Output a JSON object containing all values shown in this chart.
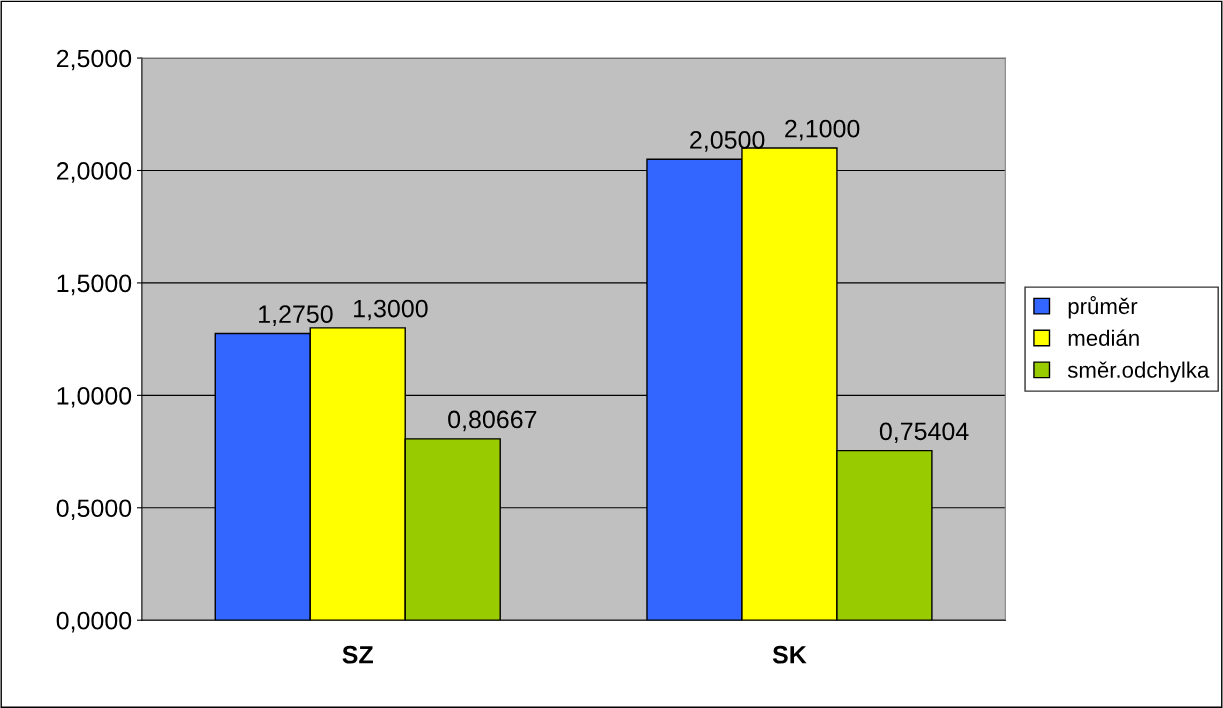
{
  "chart_data": {
    "type": "bar",
    "categories": [
      "SZ",
      "SK"
    ],
    "series": [
      {
        "name": "průměr",
        "color": "#3366ff",
        "values": [
          1.275,
          2.05
        ],
        "value_labels": [
          "1,2750",
          "2,0500"
        ]
      },
      {
        "name": "medián",
        "color": "#ffff00",
        "values": [
          1.3,
          2.1
        ],
        "value_labels": [
          "1,3000",
          "2,1000"
        ]
      },
      {
        "name": "směr.odchylka",
        "color": "#99cc00",
        "values": [
          0.80667,
          0.75404
        ],
        "value_labels": [
          "0,80667",
          "0,75404"
        ]
      }
    ],
    "ylim": [
      0,
      2.5
    ],
    "yticks": [
      {
        "value": 0,
        "label": "0,0000"
      },
      {
        "value": 0.5,
        "label": "0,5000"
      },
      {
        "value": 1,
        "label": "1,0000"
      },
      {
        "value": 1.5,
        "label": "1,5000"
      },
      {
        "value": 2,
        "label": "2,0000"
      },
      {
        "value": 2.5,
        "label": "2,5000"
      }
    ],
    "grid": "y",
    "legend": "right"
  }
}
